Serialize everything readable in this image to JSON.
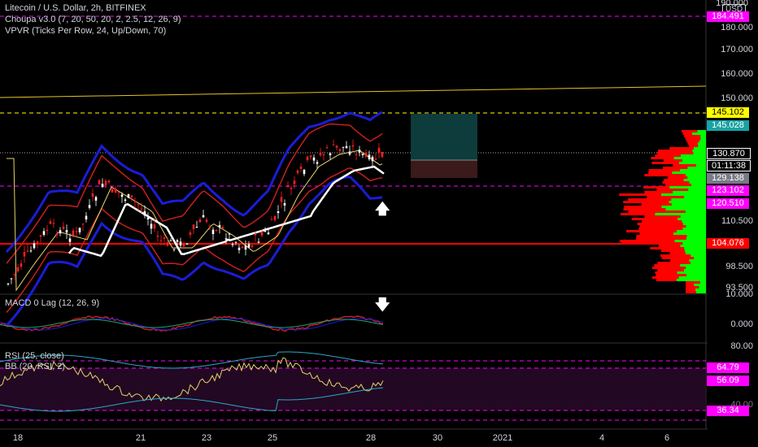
{
  "legend": {
    "symbol": "Litecoin / U.S. Dollar, 2h, BITFINEX",
    "indicator1": "Choupa v3.0 (7, 20, 50, 20, 2, 2.5, 12, 26, 9)",
    "indicator2": "VPVR (Ticks Per Row, 24, Up/Down, 70)",
    "macd": "MACD 0 Lag (12, 26, 9)",
    "rsi": "RSI (25, close)",
    "bb": "BB (20, RSI, 2)"
  },
  "currency": "USD",
  "price_axis": [
    "180.000",
    "170.000",
    "160.000",
    "150.000",
    "110.500",
    "98.500",
    "93.500"
  ],
  "top_axis_label": "184.491",
  "top_axis_partial": "190.000",
  "price_boxes": {
    "top": "184.491",
    "yellow": "145.102",
    "teal": "145.028",
    "current": "130.870",
    "countdown": "01:11:38",
    "gray": "129.138",
    "magenta1": "123.102",
    "magenta2": "120.510",
    "red": "104.076"
  },
  "macd_axis": [
    "10.000",
    "0.000"
  ],
  "rsi_axis": [
    "80.00",
    "40.00"
  ],
  "rsi_boxes": {
    "upper": "64.79",
    "mid": "56.09",
    "lower": "36.34"
  },
  "dates": [
    "18",
    "21",
    "23",
    "25",
    "28",
    "30",
    "2021",
    "4",
    "6"
  ],
  "colors": {
    "up": "#ffffff",
    "down": "#ff1f1f",
    "magenta": "#ff00ff",
    "yellow": "#ffff00",
    "teal": "#1aa3a3",
    "red_line": "#ff0000",
    "vp_up": "#00ff00",
    "vp_down": "#ff0000"
  },
  "icons": {
    "up_arrow": "arrow-up-icon",
    "down_arrow": "arrow-down-icon"
  }
}
